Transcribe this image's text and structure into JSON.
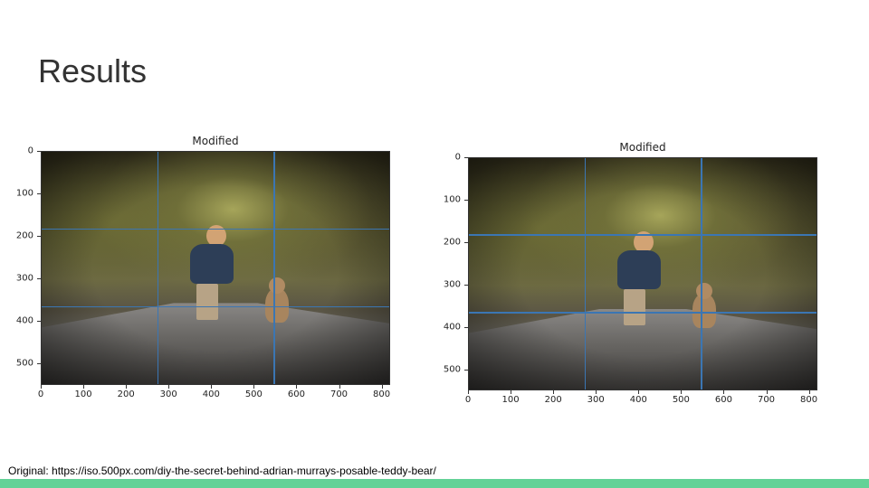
{
  "slide": {
    "title": "Results",
    "caption": "Original: https://iso.500px.com/diy-the-secret-behind-adrian-murrays-posable-teddy-bear/"
  },
  "figures": [
    {
      "title": "Modified",
      "x_ticks": [
        "0",
        "100",
        "200",
        "300",
        "400",
        "500",
        "600",
        "700",
        "800"
      ],
      "y_ticks": [
        "0",
        "100",
        "200",
        "300",
        "400",
        "500"
      ],
      "x_range": [
        0,
        820
      ],
      "y_range": [
        0,
        550
      ],
      "h_lines_y": [
        182,
        365
      ],
      "v_lines_x": [
        273,
        546
      ]
    },
    {
      "title": "Modified",
      "x_ticks": [
        "0",
        "100",
        "200",
        "300",
        "400",
        "500",
        "600",
        "700",
        "800"
      ],
      "y_ticks": [
        "0",
        "100",
        "200",
        "300",
        "400",
        "500"
      ],
      "x_range": [
        0,
        820
      ],
      "y_range": [
        0,
        550
      ],
      "h_lines_y": [
        182,
        365
      ],
      "v_lines_x": [
        273,
        546
      ]
    }
  ],
  "colors": {
    "gridline": "#3b76b3",
    "bottom_bar": "#63d297"
  }
}
